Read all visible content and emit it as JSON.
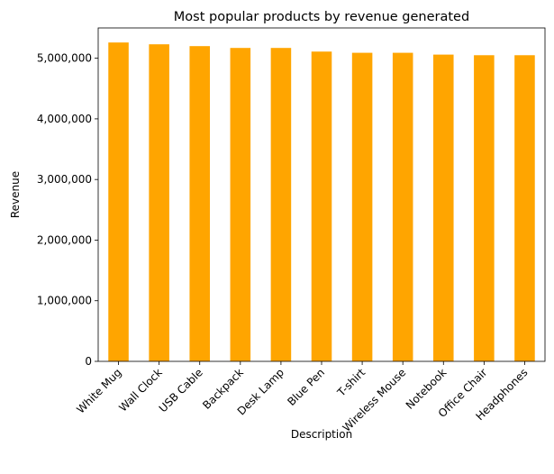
{
  "chart_data": {
    "type": "bar",
    "title": "Most popular products by revenue generated",
    "xlabel": "Description",
    "ylabel": "Revenue",
    "categories": [
      "White Mug",
      "Wall Clock",
      "USB Cable",
      "Backpack",
      "Desk Lamp",
      "Blue Pen",
      "T-shirt",
      "Wireless Mouse",
      "Notebook",
      "Office Chair",
      "Headphones"
    ],
    "values": [
      5260000,
      5230000,
      5200000,
      5170000,
      5170000,
      5110000,
      5090000,
      5090000,
      5060000,
      5050000,
      5050000
    ],
    "ylim": [
      0,
      5500000
    ],
    "yticks": [
      0,
      1000000,
      2000000,
      3000000,
      4000000,
      5000000
    ],
    "ytick_labels": [
      "0",
      "1,000,000",
      "2,000,000",
      "3,000,000",
      "4,000,000",
      "5,000,000"
    ],
    "bar_color": "#ffa500",
    "grid": false,
    "legend": "none"
  }
}
